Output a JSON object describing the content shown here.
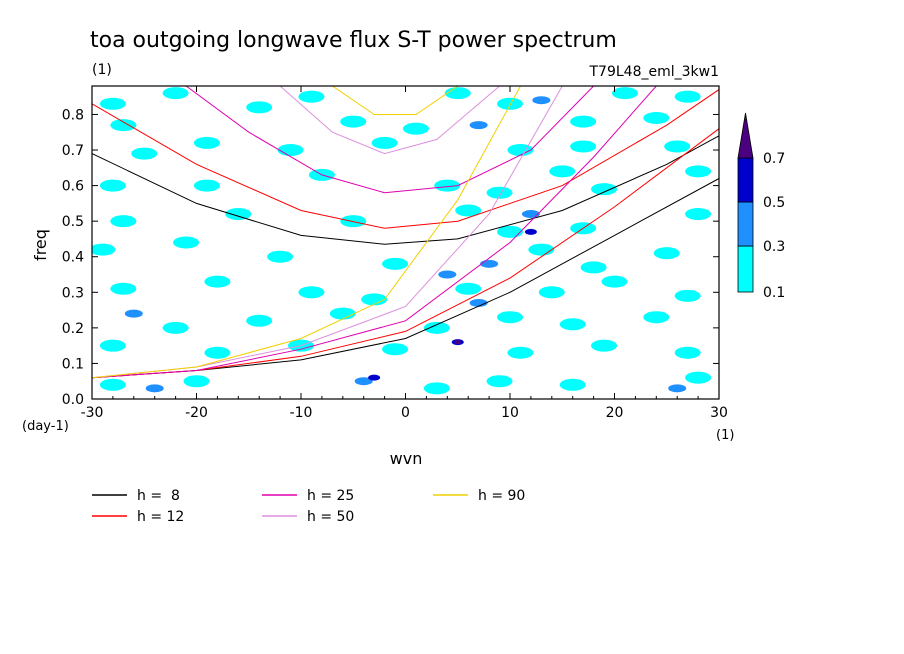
{
  "chart_data": {
    "type": "heatmap",
    "title": "toa outgoing longwave flux S-T power spectrum",
    "subtitle_left": "(1)",
    "subtitle_right": "T79L48_eml_3kw1",
    "xlabel": "wvn",
    "ylabel": "freq",
    "x_unit": "(1)",
    "y_unit": "(day-1)",
    "xlim": [
      -30,
      30
    ],
    "ylim": [
      0,
      0.88
    ],
    "x_ticks": [
      -30,
      -20,
      -10,
      0,
      10,
      20,
      30
    ],
    "x_tick_labels": [
      "-30",
      "-20",
      "-10",
      "0",
      "10",
      "20",
      "30"
    ],
    "y_ticks": [
      0,
      0.1,
      0.2,
      0.3,
      0.4,
      0.5,
      0.6,
      0.7,
      0.8
    ],
    "y_tick_labels": [
      "0.0",
      "0.1",
      "0.2",
      "0.3",
      "0.4",
      "0.5",
      "0.6",
      "0.7",
      "0.8"
    ],
    "colorbar": {
      "levels": [
        "0.1",
        "0.3",
        "0.5",
        "0.7"
      ],
      "colors": [
        "#00ffff",
        "#1e90ff",
        "#0000cd",
        "#4b0082"
      ]
    },
    "patches": [
      {
        "x": -28,
        "y": 0.83,
        "level": 1
      },
      {
        "x": -22,
        "y": 0.86,
        "level": 1
      },
      {
        "x": -14,
        "y": 0.82,
        "level": 1
      },
      {
        "x": -9,
        "y": 0.85,
        "level": 1
      },
      {
        "x": -5,
        "y": 0.78,
        "level": 1
      },
      {
        "x": 5,
        "y": 0.86,
        "level": 1
      },
      {
        "x": 10,
        "y": 0.83,
        "level": 1
      },
      {
        "x": 13,
        "y": 0.84,
        "level": 2
      },
      {
        "x": 21,
        "y": 0.86,
        "level": 1
      },
      {
        "x": 27,
        "y": 0.85,
        "level": 1
      },
      {
        "x": -27,
        "y": 0.77,
        "level": 1
      },
      {
        "x": 1,
        "y": 0.76,
        "level": 1
      },
      {
        "x": 7,
        "y": 0.77,
        "level": 2
      },
      {
        "x": 17,
        "y": 0.78,
        "level": 1
      },
      {
        "x": 24,
        "y": 0.79,
        "level": 1
      },
      {
        "x": -25,
        "y": 0.69,
        "level": 1
      },
      {
        "x": -19,
        "y": 0.72,
        "level": 1
      },
      {
        "x": -11,
        "y": 0.7,
        "level": 1
      },
      {
        "x": -2,
        "y": 0.72,
        "level": 1
      },
      {
        "x": 11,
        "y": 0.7,
        "level": 1
      },
      {
        "x": 17,
        "y": 0.71,
        "level": 1
      },
      {
        "x": 26,
        "y": 0.71,
        "level": 1
      },
      {
        "x": -28,
        "y": 0.6,
        "level": 1
      },
      {
        "x": -19,
        "y": 0.6,
        "level": 1
      },
      {
        "x": -8,
        "y": 0.63,
        "level": 1
      },
      {
        "x": 4,
        "y": 0.6,
        "level": 1
      },
      {
        "x": 9,
        "y": 0.58,
        "level": 1
      },
      {
        "x": 15,
        "y": 0.64,
        "level": 1
      },
      {
        "x": 19,
        "y": 0.59,
        "level": 1
      },
      {
        "x": 28,
        "y": 0.64,
        "level": 1
      },
      {
        "x": -27,
        "y": 0.5,
        "level": 1
      },
      {
        "x": -16,
        "y": 0.52,
        "level": 1
      },
      {
        "x": -5,
        "y": 0.5,
        "level": 1
      },
      {
        "x": 6,
        "y": 0.53,
        "level": 1
      },
      {
        "x": 10,
        "y": 0.47,
        "level": 1
      },
      {
        "x": 12,
        "y": 0.52,
        "level": 2
      },
      {
        "x": 12,
        "y": 0.47,
        "level": 3
      },
      {
        "x": 17,
        "y": 0.48,
        "level": 1
      },
      {
        "x": 28,
        "y": 0.52,
        "level": 1
      },
      {
        "x": -29,
        "y": 0.42,
        "level": 1
      },
      {
        "x": -21,
        "y": 0.44,
        "level": 1
      },
      {
        "x": -12,
        "y": 0.4,
        "level": 1
      },
      {
        "x": -1,
        "y": 0.38,
        "level": 1
      },
      {
        "x": 4,
        "y": 0.35,
        "level": 2
      },
      {
        "x": 8,
        "y": 0.38,
        "level": 2
      },
      {
        "x": 13,
        "y": 0.42,
        "level": 1
      },
      {
        "x": 18,
        "y": 0.37,
        "level": 1
      },
      {
        "x": 25,
        "y": 0.41,
        "level": 1
      },
      {
        "x": -27,
        "y": 0.31,
        "level": 1
      },
      {
        "x": -18,
        "y": 0.33,
        "level": 1
      },
      {
        "x": -9,
        "y": 0.3,
        "level": 1
      },
      {
        "x": -3,
        "y": 0.28,
        "level": 1
      },
      {
        "x": 6,
        "y": 0.31,
        "level": 1
      },
      {
        "x": 7,
        "y": 0.27,
        "level": 2
      },
      {
        "x": 14,
        "y": 0.3,
        "level": 1
      },
      {
        "x": 20,
        "y": 0.33,
        "level": 1
      },
      {
        "x": 27,
        "y": 0.29,
        "level": 1
      },
      {
        "x": -26,
        "y": 0.24,
        "level": 2
      },
      {
        "x": -22,
        "y": 0.2,
        "level": 1
      },
      {
        "x": -14,
        "y": 0.22,
        "level": 1
      },
      {
        "x": -6,
        "y": 0.24,
        "level": 1
      },
      {
        "x": 3,
        "y": 0.2,
        "level": 1
      },
      {
        "x": 10,
        "y": 0.23,
        "level": 1
      },
      {
        "x": 16,
        "y": 0.21,
        "level": 1
      },
      {
        "x": 24,
        "y": 0.23,
        "level": 1
      },
      {
        "x": -28,
        "y": 0.15,
        "level": 1
      },
      {
        "x": -18,
        "y": 0.13,
        "level": 1
      },
      {
        "x": -10,
        "y": 0.15,
        "level": 1
      },
      {
        "x": -1,
        "y": 0.14,
        "level": 1
      },
      {
        "x": 5,
        "y": 0.16,
        "level": 3
      },
      {
        "x": 5,
        "y": 0.16,
        "level": 4
      },
      {
        "x": 11,
        "y": 0.13,
        "level": 1
      },
      {
        "x": 19,
        "y": 0.15,
        "level": 1
      },
      {
        "x": 27,
        "y": 0.13,
        "level": 1
      },
      {
        "x": -28,
        "y": 0.04,
        "level": 1
      },
      {
        "x": -24,
        "y": 0.03,
        "level": 2
      },
      {
        "x": -20,
        "y": 0.05,
        "level": 1
      },
      {
        "x": -4,
        "y": 0.05,
        "level": 2
      },
      {
        "x": -3,
        "y": 0.06,
        "level": 3
      },
      {
        "x": 3,
        "y": 0.03,
        "level": 1
      },
      {
        "x": 9,
        "y": 0.05,
        "level": 1
      },
      {
        "x": 16,
        "y": 0.04,
        "level": 1
      },
      {
        "x": 26,
        "y": 0.03,
        "level": 2
      },
      {
        "x": 28,
        "y": 0.06,
        "level": 1
      }
    ],
    "series": [
      {
        "name": "h =  8",
        "color": "#000000",
        "curves": [
          {
            "x": [
              -30,
              -20,
              -10,
              -2,
              5,
              15,
              25,
              30
            ],
            "y": [
              0.69,
              0.55,
              0.46,
              0.435,
              0.45,
              0.53,
              0.66,
              0.74
            ]
          },
          {
            "x": [
              -30,
              -20,
              -10,
              0,
              10,
              20,
              30
            ],
            "y": [
              0.06,
              0.08,
              0.11,
              0.17,
              0.3,
              0.46,
              0.62
            ]
          }
        ]
      },
      {
        "name": "h = 12",
        "color": "#ff0000",
        "curves": [
          {
            "x": [
              -30,
              -20,
              -10,
              -2,
              5,
              15,
              25,
              30
            ],
            "y": [
              0.83,
              0.66,
              0.53,
              0.48,
              0.5,
              0.6,
              0.77,
              0.87
            ]
          },
          {
            "x": [
              -30,
              -20,
              -10,
              0,
              10,
              20,
              30
            ],
            "y": [
              0.06,
              0.08,
              0.12,
              0.19,
              0.34,
              0.54,
              0.76
            ]
          }
        ]
      },
      {
        "name": "h = 25",
        "color": "#e000b0",
        "curves": [
          {
            "x": [
              -21,
              -15,
              -8,
              -2,
              5,
              12,
              18
            ],
            "y": [
              0.88,
              0.75,
              0.63,
              0.58,
              0.6,
              0.7,
              0.88
            ]
          },
          {
            "x": [
              -30,
              -20,
              -10,
              0,
              10,
              18,
              24
            ],
            "y": [
              0.06,
              0.08,
              0.14,
              0.22,
              0.44,
              0.68,
              0.88
            ]
          }
        ]
      },
      {
        "name": "h = 50",
        "color": "#dd90dd",
        "curves": [
          {
            "x": [
              -12,
              -7,
              -2,
              3,
              9
            ],
            "y": [
              0.88,
              0.75,
              0.69,
              0.73,
              0.88
            ]
          },
          {
            "x": [
              -30,
              -20,
              -10,
              0,
              8,
              15
            ],
            "y": [
              0.06,
              0.09,
              0.15,
              0.26,
              0.52,
              0.88
            ]
          }
        ]
      },
      {
        "name": "h = 90",
        "color": "#f0d000",
        "curves": [
          {
            "x": [
              -7,
              -3,
              1,
              5
            ],
            "y": [
              0.88,
              0.8,
              0.8,
              0.88
            ]
          },
          {
            "x": [
              -30,
              -20,
              -10,
              -2,
              5,
              11
            ],
            "y": [
              0.06,
              0.09,
              0.17,
              0.28,
              0.56,
              0.88
            ]
          }
        ]
      }
    ]
  }
}
